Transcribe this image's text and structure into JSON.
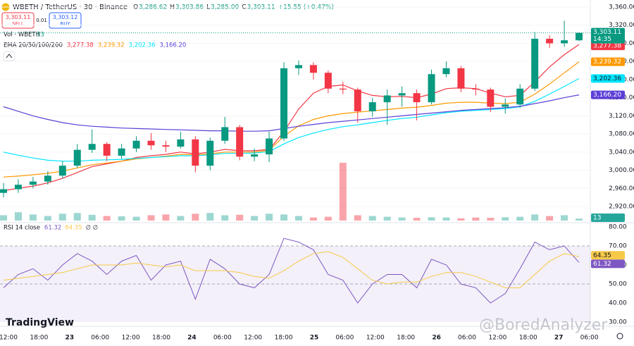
{
  "header": {
    "symbol": "WBETH / TetherUS · 30 · Binance",
    "ohlc": [
      {
        "key": "O",
        "value": "3,286.62"
      },
      {
        "key": "H",
        "value": "3,303.86"
      },
      {
        "key": "L",
        "value": "3,285.00"
      },
      {
        "key": "C",
        "value": "3,303.11"
      }
    ],
    "change": "+15.55 (+0.47%)",
    "sell": {
      "price": "3,303.11",
      "label": "SELL"
    },
    "spread": "0.01",
    "buy": {
      "price": "3,303.12",
      "label": "BUY"
    },
    "countdown": "14:35",
    "logo": "TradingView",
    "watermark": "@BoredAnalyzer"
  },
  "time_axis": {
    "labels": [
      "12:00",
      "18:00",
      "23",
      "06:00",
      "12:00",
      "18:00",
      "24",
      "06:00",
      "12:00",
      "18:00",
      "25",
      "06:00",
      "12:00",
      "18:00",
      "26",
      "06:00",
      "12:00",
      "18:00",
      "27",
      "06:00"
    ]
  },
  "chart_data": [
    {
      "type": "candlestick",
      "title": "EMA 20/50/100/200",
      "last_label": "3,303.11",
      "up_color": "#089981",
      "down_color": "#f23645",
      "ylim": [
        2920,
        3360
      ],
      "yticks": [
        {
          "value": 2920,
          "label": "2,920.00"
        },
        {
          "value": 2960,
          "label": "2,960.00"
        },
        {
          "value": 3000,
          "label": "3,000.00"
        },
        {
          "value": 3040,
          "label": "3,040.00"
        },
        {
          "value": 3080,
          "label": "3,080.00"
        },
        {
          "value": 3120,
          "label": "3,120.00"
        },
        {
          "value": 3160,
          "label": "3,160.00"
        },
        {
          "value": 3200,
          "label": "3,200.00"
        },
        {
          "value": 3240,
          "label": "3,240.00"
        },
        {
          "value": 3280,
          "label": "3,280.00"
        },
        {
          "value": 3320,
          "label": "3,320.00"
        },
        {
          "value": 3360,
          "label": "3,360.00"
        }
      ],
      "open": [
        2950,
        2958,
        2968,
        2975,
        2988,
        3010,
        3045,
        3058,
        3032,
        3048,
        3065,
        3055,
        3052,
        3068,
        3010,
        3065,
        3095,
        3030,
        3035,
        3070,
        3225,
        3232,
        3215,
        3180,
        3178,
        3130,
        3150,
        3165,
        3170,
        3150,
        3212,
        3225,
        3180,
        3178,
        3140,
        3145,
        3180,
        3290,
        3280,
        3286.62
      ],
      "high": [
        2972,
        2980,
        2985,
        2998,
        3020,
        3058,
        3090,
        3062,
        3058,
        3075,
        3082,
        3065,
        3085,
        3075,
        3072,
        3118,
        3100,
        3048,
        3085,
        3238,
        3242,
        3238,
        3220,
        3195,
        3182,
        3160,
        3178,
        3185,
        3178,
        3222,
        3240,
        3230,
        3190,
        3182,
        3158,
        3190,
        3305,
        3298,
        3330,
        3303.86
      ],
      "low": [
        2940,
        2950,
        2960,
        2968,
        2982,
        3005,
        3038,
        3020,
        3025,
        3040,
        3045,
        3040,
        3048,
        2995,
        3000,
        3058,
        3022,
        3020,
        3018,
        3065,
        3210,
        3200,
        3170,
        3168,
        3105,
        3118,
        3100,
        3140,
        3110,
        3145,
        3205,
        3172,
        3165,
        3128,
        3125,
        3138,
        3175,
        3270,
        3272,
        3285.0
      ],
      "close": [
        2958,
        2968,
        2975,
        2988,
        3010,
        3045,
        3058,
        3032,
        3048,
        3065,
        3055,
        3052,
        3068,
        3010,
        3065,
        3095,
        3030,
        3035,
        3070,
        3225,
        3232,
        3215,
        3180,
        3178,
        3130,
        3150,
        3165,
        3170,
        3150,
        3212,
        3225,
        3180,
        3178,
        3140,
        3145,
        3180,
        3290,
        3280,
        3286.62,
        3303.11
      ],
      "series": [
        {
          "name": "20",
          "color": "#f23645",
          "last_label": "3,277.38",
          "values": [
            2955,
            2960,
            2965,
            2972,
            2982,
            2995,
            3008,
            3014,
            3020,
            3028,
            3032,
            3035,
            3040,
            3036,
            3040,
            3046,
            3043,
            3043,
            3046,
            3085,
            3135,
            3170,
            3185,
            3188,
            3175,
            3165,
            3162,
            3163,
            3160,
            3168,
            3180,
            3182,
            3180,
            3170,
            3162,
            3165,
            3195,
            3228,
            3255,
            3277.38
          ]
        },
        {
          "name": "50",
          "color": "#ff9800",
          "last_label": "3,239.32",
          "values": [
            2985,
            2987,
            2990,
            2993,
            2998,
            3005,
            3012,
            3016,
            3020,
            3025,
            3028,
            3031,
            3035,
            3034,
            3036,
            3040,
            3040,
            3040,
            3044,
            3075,
            3098,
            3112,
            3120,
            3125,
            3128,
            3131,
            3134,
            3137,
            3139,
            3143,
            3148,
            3150,
            3150,
            3148,
            3147,
            3150,
            3168,
            3190,
            3215,
            3239.32
          ]
        },
        {
          "name": "100",
          "color": "#00e5ff",
          "last_label": "3,202.36",
          "values": [
            3040,
            3033,
            3027,
            3022,
            3020,
            3020,
            3022,
            3023,
            3024,
            3026,
            3028,
            3030,
            3032,
            3032,
            3034,
            3037,
            3037,
            3038,
            3041,
            3058,
            3072,
            3082,
            3090,
            3096,
            3100,
            3105,
            3110,
            3114,
            3117,
            3122,
            3127,
            3130,
            3132,
            3134,
            3136,
            3140,
            3152,
            3168,
            3185,
            3202.36
          ]
        },
        {
          "name": "200",
          "color": "#5c3fd6",
          "last_label": "3,166.20",
          "values": [
            3140,
            3130,
            3120,
            3112,
            3105,
            3100,
            3097,
            3095,
            3093,
            3092,
            3091,
            3090,
            3089,
            3088,
            3087,
            3087,
            3086,
            3086,
            3087,
            3092,
            3097,
            3101,
            3105,
            3108,
            3111,
            3114,
            3117,
            3120,
            3123,
            3126,
            3129,
            3132,
            3134,
            3136,
            3138,
            3141,
            3147,
            3153,
            3160,
            3166.2
          ]
        }
      ]
    },
    {
      "type": "bar",
      "title": "Vol · WBETH",
      "color": "#26a69a",
      "values": [
        35,
        55,
        40,
        30,
        45,
        50,
        38,
        30,
        28,
        25,
        35,
        40,
        30,
        45,
        50,
        35,
        38,
        30,
        45,
        40,
        30,
        20,
        25,
        380,
        35,
        30,
        25,
        20,
        18,
        22,
        20,
        15,
        20,
        18,
        22,
        25,
        40,
        30,
        35,
        13
      ]
    },
    {
      "type": "line",
      "title": "RSI 14 close",
      "extra": "∅ ∅",
      "ylim": [
        30,
        80
      ],
      "yticks": [
        {
          "value": 30,
          "label": "30.00"
        },
        {
          "value": 40,
          "label": "40.00"
        },
        {
          "value": 50,
          "label": "50.00"
        },
        {
          "value": 60,
          "label": "60.00"
        },
        {
          "value": 70,
          "label": "70.00"
        },
        {
          "value": 80,
          "label": "80.00"
        }
      ],
      "series": [
        {
          "name": "RSI",
          "color": "#7e57c2",
          "values": [
            48,
            55,
            58,
            52,
            60,
            66,
            62,
            55,
            62,
            65,
            52,
            60,
            62,
            42,
            63,
            58,
            50,
            48,
            55,
            74,
            72,
            68,
            55,
            52,
            40,
            50,
            55,
            55,
            48,
            63,
            60,
            50,
            48,
            40,
            45,
            58,
            72,
            68,
            70,
            61.32
          ]
        },
        {
          "name": "MA",
          "color": "#f7c948",
          "values": [
            52,
            53,
            54,
            55,
            56,
            58,
            60,
            60,
            60,
            61,
            60,
            59,
            60,
            57,
            57,
            57,
            56,
            54,
            53,
            57,
            62,
            66,
            67,
            64,
            58,
            52,
            50,
            51,
            51,
            54,
            56,
            56,
            54,
            51,
            48,
            48,
            55,
            62,
            66,
            64.35
          ]
        }
      ]
    }
  ]
}
